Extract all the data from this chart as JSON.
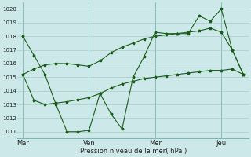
{
  "title": "",
  "xlabel": "Pression niveau de la mer( hPa )",
  "ylabel": "",
  "bg_color": "#cce8e8",
  "grid_color": "#aacccc",
  "line_color": "#1a5c1a",
  "ylim": [
    1010.5,
    1020.5
  ],
  "yticks": [
    1011,
    1012,
    1013,
    1014,
    1015,
    1016,
    1017,
    1018,
    1019,
    1020
  ],
  "day_labels": [
    "Mar",
    "Ven",
    "Mer",
    "Jeu"
  ],
  "day_positions": [
    0,
    24,
    48,
    72
  ],
  "vline_positions": [
    0,
    24,
    48,
    72
  ],
  "xlim": [
    -2,
    82
  ],
  "line1_x": [
    0,
    4,
    8,
    12,
    16,
    20,
    24,
    28,
    32,
    36,
    40,
    44,
    48,
    52,
    56,
    60,
    64,
    68,
    72,
    76,
    80
  ],
  "line1_y": [
    1018.0,
    1016.6,
    1015.2,
    1013.0,
    1011.0,
    1011.0,
    1011.1,
    1013.8,
    1012.3,
    1011.2,
    1015.0,
    1016.5,
    1018.3,
    1018.2,
    1018.2,
    1018.2,
    1019.5,
    1019.1,
    1020.0,
    1017.0,
    1015.2
  ],
  "line2_x": [
    0,
    4,
    8,
    12,
    16,
    20,
    24,
    28,
    32,
    36,
    40,
    44,
    48,
    52,
    56,
    60,
    64,
    68,
    72,
    76,
    80
  ],
  "line2_y": [
    1015.2,
    1015.6,
    1015.9,
    1016.0,
    1016.0,
    1015.9,
    1015.8,
    1016.2,
    1016.8,
    1017.2,
    1017.5,
    1017.8,
    1018.0,
    1018.1,
    1018.2,
    1018.3,
    1018.4,
    1018.6,
    1018.3,
    1017.0,
    1015.2
  ],
  "line3_x": [
    0,
    4,
    8,
    12,
    16,
    20,
    24,
    28,
    32,
    36,
    40,
    44,
    48,
    52,
    56,
    60,
    64,
    68,
    72,
    76,
    80
  ],
  "line3_y": [
    1015.2,
    1013.3,
    1013.0,
    1013.1,
    1013.2,
    1013.35,
    1013.5,
    1013.8,
    1014.2,
    1014.5,
    1014.7,
    1014.9,
    1015.0,
    1015.1,
    1015.2,
    1015.3,
    1015.4,
    1015.5,
    1015.5,
    1015.6,
    1015.2
  ],
  "figsize": [
    3.2,
    2.0
  ],
  "dpi": 100
}
